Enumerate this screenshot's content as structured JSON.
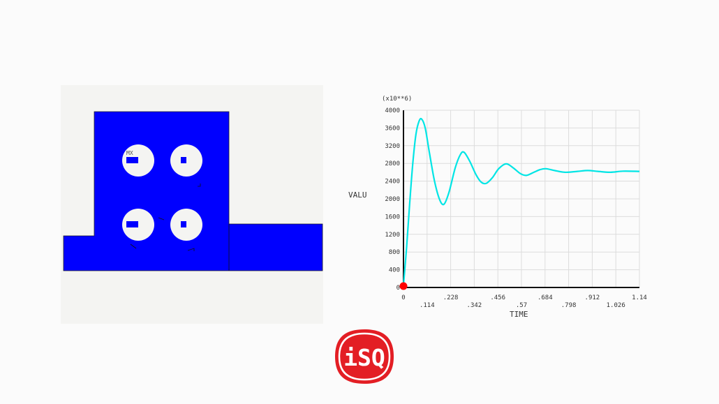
{
  "model": {
    "label": "MX",
    "fill_color": "#0000ff"
  },
  "chart_data": {
    "type": "line",
    "multiplier_label": "(x10**6)",
    "xlabel": "TIME",
    "ylabel": "VALU",
    "xlim": [
      0,
      1.14
    ],
    "ylim": [
      0,
      4000
    ],
    "grid": true,
    "x_ticks": [
      "0",
      ".114",
      ".228",
      ".342",
      ".456",
      ".57",
      ".684",
      ".798",
      ".912",
      "1.026",
      "1.14"
    ],
    "y_ticks": [
      "0",
      "400",
      "800",
      "1200",
      "1600",
      "2000",
      "2400",
      "2800",
      "3200",
      "3600",
      "4000"
    ],
    "series": [
      {
        "color": "#00e5e5",
        "x": [
          0,
          0.015,
          0.03,
          0.045,
          0.06,
          0.075,
          0.088,
          0.105,
          0.125,
          0.15,
          0.175,
          0.196,
          0.22,
          0.25,
          0.275,
          0.293,
          0.32,
          0.35,
          0.375,
          0.4,
          0.43,
          0.46,
          0.496,
          0.53,
          0.565,
          0.594,
          0.63,
          0.66,
          0.688,
          0.73,
          0.78,
          0.84,
          0.89,
          0.94,
          1.0,
          1.06,
          1.14
        ],
        "y": [
          50,
          900,
          1900,
          2800,
          3450,
          3750,
          3800,
          3600,
          3050,
          2400,
          1980,
          1880,
          2150,
          2700,
          3000,
          3050,
          2850,
          2550,
          2380,
          2350,
          2480,
          2680,
          2790,
          2700,
          2570,
          2530,
          2600,
          2660,
          2680,
          2640,
          2600,
          2620,
          2640,
          2620,
          2600,
          2625,
          2620
        ]
      }
    ],
    "marker": {
      "x": 0,
      "y": 0,
      "color": "#ff0000"
    }
  },
  "logo": {
    "text": "iSQ",
    "color": "#e31e24"
  }
}
